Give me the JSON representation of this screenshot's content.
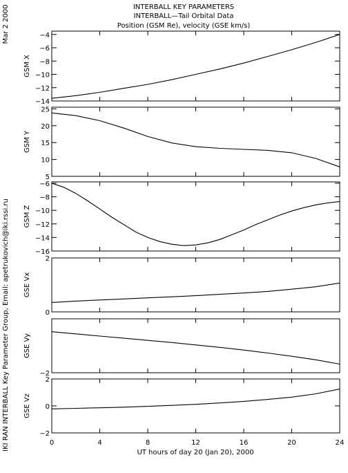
{
  "header": {
    "line1": "INTERBALL KEY PARAMETERS",
    "line2": "INTERBALL—Tail Orbital Data",
    "line3": "Position (GSM Re), velocity (GSE km/s)"
  },
  "side": {
    "date": "Mar  2 2000",
    "credit": "IKI RAN INTERBALL Key Parameter Group, Email: apetrukovich@iki.rssi.ru"
  },
  "chart_data": {
    "type": "line",
    "xlabel": "UT hours of day  20 (Jan 20), 2000",
    "xlim": [
      0,
      24
    ],
    "xticks": [
      0,
      4,
      8,
      12,
      16,
      20,
      24
    ],
    "panels": [
      {
        "ylabel": "GSM X",
        "ylim": [
          -14,
          -3.5
        ],
        "yticks": [
          -14,
          -12,
          -10,
          -8,
          -6,
          -4
        ],
        "series": [
          {
            "x": [
              0,
              2,
              4,
              6,
              8,
              10,
              12,
              14,
              16,
              18,
              20,
              22,
              24
            ],
            "y": [
              -13.6,
              -13.2,
              -12.7,
              -12.1,
              -11.5,
              -10.8,
              -10.0,
              -9.2,
              -8.3,
              -7.3,
              -6.3,
              -5.2,
              -4.0
            ]
          }
        ]
      },
      {
        "ylabel": "GSM Y",
        "ylim": [
          5,
          25.5
        ],
        "yticks": [
          5,
          10,
          15,
          20,
          25
        ],
        "series": [
          {
            "x": [
              0,
              2,
              4,
              6,
              8,
              10,
              12,
              14,
              16,
              18,
              20,
              22,
              24
            ],
            "y": [
              23.8,
              23.0,
              21.5,
              19.3,
              16.8,
              14.9,
              13.8,
              13.3,
              13.0,
              12.7,
              12.0,
              10.3,
              7.8
            ]
          }
        ]
      },
      {
        "ylabel": "GSM Z",
        "ylim": [
          -16,
          -5.8
        ],
        "yticks": [
          -16,
          -14,
          -12,
          -10,
          -8,
          -6
        ],
        "series": [
          {
            "x": [
              0,
              1,
              2,
              3,
              4,
              5,
              6,
              7,
              8,
              9,
              10,
              11,
              12,
              13,
              14,
              15,
              16,
              17,
              18,
              19,
              20,
              21,
              22,
              23,
              24
            ],
            "y": [
              -6.0,
              -6.6,
              -7.5,
              -8.6,
              -9.8,
              -11.0,
              -12.1,
              -13.2,
              -14.0,
              -14.6,
              -15.0,
              -15.2,
              -15.1,
              -14.8,
              -14.3,
              -13.6,
              -12.9,
              -12.1,
              -11.4,
              -10.7,
              -10.1,
              -9.6,
              -9.2,
              -8.9,
              -8.7
            ]
          }
        ]
      },
      {
        "ylabel": "GSE Vx",
        "ylim": [
          0,
          2
        ],
        "yticks": [
          0,
          2
        ],
        "series": [
          {
            "x": [
              0,
              2,
              4,
              6,
              8,
              10,
              12,
              14,
              16,
              18,
              20,
              22,
              24
            ],
            "y": [
              0.35,
              0.4,
              0.44,
              0.48,
              0.52,
              0.56,
              0.6,
              0.65,
              0.7,
              0.76,
              0.84,
              0.93,
              1.07
            ]
          }
        ]
      },
      {
        "ylabel": "GSE Vy",
        "ylim": [
          -2,
          0
        ],
        "yticks": [
          -2
        ],
        "series": [
          {
            "x": [
              0,
              2,
              4,
              6,
              8,
              10,
              12,
              14,
              16,
              18,
              20,
              22,
              24
            ],
            "y": [
              -0.48,
              -0.56,
              -0.64,
              -0.72,
              -0.8,
              -0.88,
              -0.97,
              -1.06,
              -1.16,
              -1.27,
              -1.39,
              -1.52,
              -1.68
            ]
          }
        ]
      },
      {
        "ylabel": "GSE Vz",
        "ylim": [
          -2,
          2
        ],
        "yticks": [
          -2,
          0,
          2
        ],
        "series": [
          {
            "x": [
              0,
              2,
              4,
              6,
              8,
              10,
              12,
              14,
              16,
              18,
              20,
              22,
              24
            ],
            "y": [
              -0.22,
              -0.18,
              -0.14,
              -0.09,
              -0.03,
              0.04,
              0.12,
              0.22,
              0.34,
              0.48,
              0.65,
              0.9,
              1.25
            ]
          }
        ]
      }
    ]
  }
}
